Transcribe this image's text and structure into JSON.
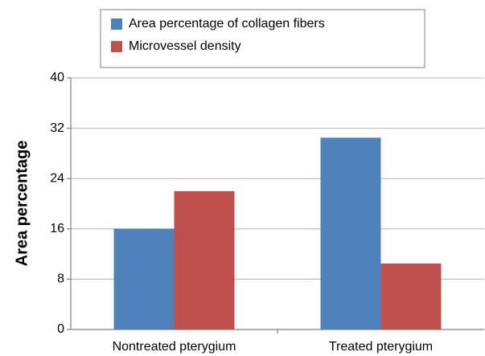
{
  "chart_data": {
    "type": "bar",
    "ylabel": "Area percentage",
    "categories": [
      "Nontreated pterygium",
      "Treated pterygium"
    ],
    "series": [
      {
        "name": "Area percentage of collagen fibers",
        "color": "#4f81bd",
        "values": [
          16,
          30.5
        ]
      },
      {
        "name": "Microvessel density",
        "color": "#c0504d",
        "values": [
          22,
          10.5
        ]
      }
    ],
    "ylim": [
      0,
      40
    ],
    "yticks": [
      0,
      8,
      16,
      24,
      32,
      40
    ],
    "grid": true,
    "legend": "top"
  }
}
